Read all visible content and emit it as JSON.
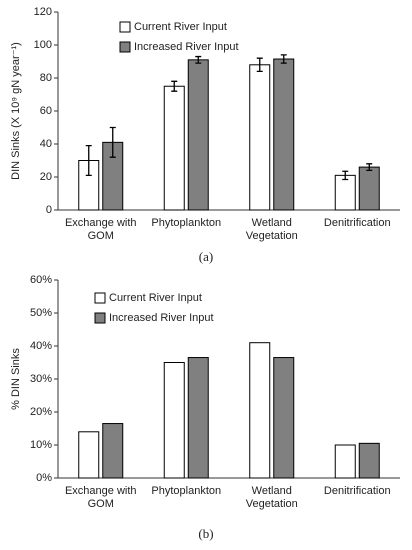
{
  "chart_data": [
    {
      "type": "bar",
      "caption": "(a)",
      "ylabel": "DIN Sinks (X 10⁹ gN year⁻¹)",
      "categories": [
        [
          "Exchange with",
          "GOM"
        ],
        [
          "Phytoplankton"
        ],
        [
          "Wetland",
          "Vegetation"
        ],
        [
          "Denitrification"
        ]
      ],
      "series": [
        {
          "name": "Current River Input",
          "color": "#ffffff",
          "values": [
            30,
            75,
            88,
            21
          ],
          "errors": [
            9,
            3,
            4,
            2.5
          ]
        },
        {
          "name": "Increased River Input",
          "color": "#808080",
          "values": [
            41,
            91,
            91.5,
            26
          ],
          "errors": [
            9,
            2,
            2.5,
            2
          ]
        }
      ],
      "ylim": [
        0,
        120
      ],
      "yticks": [
        0,
        20,
        40,
        60,
        80,
        100,
        120
      ]
    },
    {
      "type": "bar",
      "caption": "(b)",
      "ylabel": "% DIN Sinks",
      "categories": [
        [
          "Exchange with",
          "GOM"
        ],
        [
          "Phytoplankton"
        ],
        [
          "Wetland",
          "Vegetation"
        ],
        [
          "Denitrification"
        ]
      ],
      "series": [
        {
          "name": "Current River Input",
          "color": "#ffffff",
          "values": [
            14,
            35,
            41,
            10
          ]
        },
        {
          "name": "Increased River Input",
          "color": "#808080",
          "values": [
            16.5,
            36.5,
            36.5,
            10.5
          ]
        }
      ],
      "ylim": [
        0,
        60
      ],
      "yticks": [
        {
          "value": 0,
          "label": "0%"
        },
        {
          "value": 10,
          "label": "10%"
        },
        {
          "value": 20,
          "label": "20%"
        },
        {
          "value": 30,
          "label": "30%"
        },
        {
          "value": 40,
          "label": "40%"
        },
        {
          "value": 50,
          "label": "50%"
        },
        {
          "value": 60,
          "label": "60%"
        }
      ]
    }
  ]
}
